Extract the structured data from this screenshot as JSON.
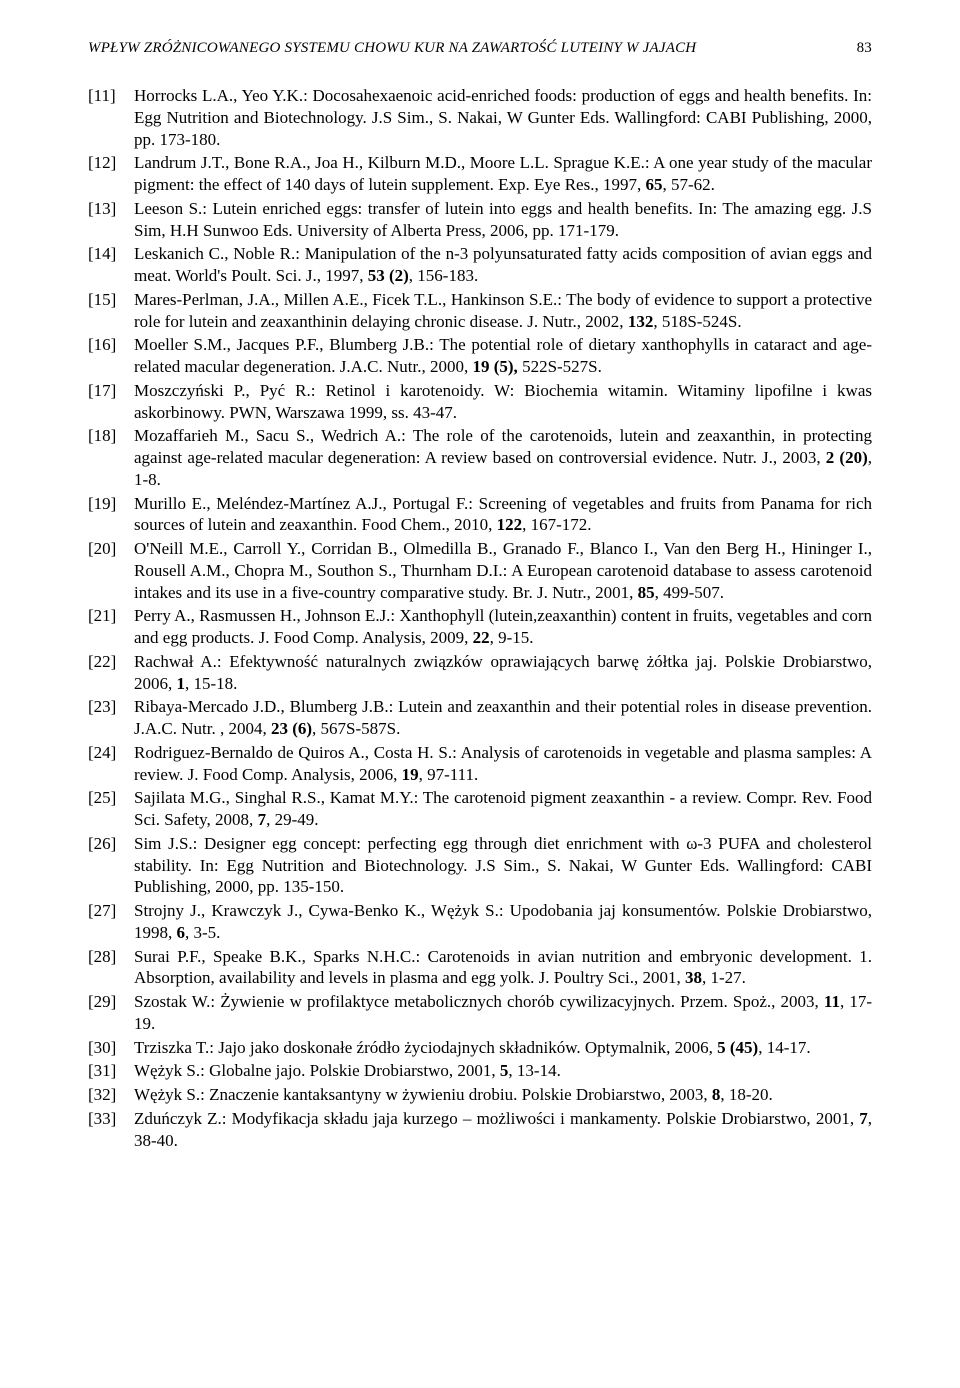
{
  "runningHead": {
    "title": "WPŁYW ZRÓŻNICOWANEGO SYSTEMU CHOWU KUR NA ZAWARTOŚĆ LUTEINY W JAJACH",
    "pageNumber": "83"
  },
  "references": [
    {
      "num": "[11]",
      "text": "Horrocks L.A., Yeo Y.K.: Docosahexaenoic acid-enriched foods: production of eggs and health benefits. In: Egg Nutrition and Biotechnology. J.S Sim., S. Nakai, W Gunter Eds. Wallingford: CABI Publishing, 2000, pp. 173-180."
    },
    {
      "num": "[12]",
      "text": "Landrum J.T., Bone R.A., Joa H., Kilburn M.D., Moore L.L. Sprague K.E.: A one year study of the macular pigment: the effect of 140 days of lutein supplement. Exp. Eye Res., 1997, <b>65</b>, 57-62."
    },
    {
      "num": "[13]",
      "text": "Leeson S.: Lutein enriched eggs: transfer of lutein into eggs and health benefits. In: The amazing egg. J.S Sim, H.H Sunwoo Eds. University of Alberta Press, 2006, pp. 171-179."
    },
    {
      "num": "[14]",
      "text": "Leskanich C., Noble R.: Manipulation of the n-3 polyunsaturated fatty acids composition of avian eggs and meat. World's Poult. Sci. J., 1997, <b>53 (2)</b>, 156-183."
    },
    {
      "num": "[15]",
      "text": "Mares-Perlman, J.A., Millen A.E., Ficek T.L., Hankinson S.E.: The body of evidence to support a protective role for lutein and zeaxanthinin delaying chronic disease. J. Nutr., 2002, <b>132</b>, 518S-524S."
    },
    {
      "num": "[16]",
      "text": "Moeller S.M., Jacques P.F., Blumberg J.B.: The potential role of dietary xanthophylls in cataract and age-related macular degeneration. J.A.C. Nutr., 2000, <b>19 (5),</b> 522S-527S."
    },
    {
      "num": "[17]",
      "text": "Moszczyński P., Pyć R.: Retinol i karotenoidy. W: Biochemia witamin. Witaminy lipofilne i kwas askorbinowy. PWN, Warszawa 1999, ss. 43-47."
    },
    {
      "num": "[18]",
      "text": "Mozaffarieh M., Sacu S., Wedrich A.: The role of the carotenoids, lutein and zeaxanthin, in protecting against age-related macular degeneration: A review based on controversial evidence. Nutr. J., 2003, <b>2 (20)</b>, 1-8."
    },
    {
      "num": "[19]",
      "text": "Murillo E., Meléndez-Martínez A.J., Portugal F.: Screening of vegetables and fruits from Panama for rich sources of lutein and zeaxanthin. Food Chem., 2010, <b>122</b>, 167-172."
    },
    {
      "num": "[20]",
      "text": "O'Neill M.E., Carroll Y., Corridan B., Olmedilla B., Granado F., Blanco I., Van den Berg H., Hininger I., Rousell A.M., Chopra M., Southon S., Thurnham D.I.: A European carotenoid database to assess carotenoid intakes and its use in a five-country comparative study. Br. J. Nutr., 2001, <b>85</b>, 499-507."
    },
    {
      "num": "[21]",
      "text": "Perry A., Rasmussen H., Johnson E.J.: Xanthophyll (lutein,zeaxanthin) content in fruits, vegetables and corn and egg products. J. Food Comp. Analysis, 2009, <b>22</b>, 9-15."
    },
    {
      "num": "[22]",
      "text": "Rachwał A.: Efektywność naturalnych związków oprawiających barwę żółtka jaj. Polskie Drobiarstwo, 2006, <b>1</b>, 15-18."
    },
    {
      "num": "[23]",
      "text": "Ribaya-Mercado J.D., Blumberg J.B.: Lutein and zeaxanthin and their potential roles in disease prevention. J.A.C. Nutr. , 2004, <b>23 (6)</b>, 567S-587S."
    },
    {
      "num": "[24]",
      "text": "Rodriguez-Bernaldo de Quiros A., Costa H. S.: Analysis of carotenoids in vegetable and plasma samples: A review. J. Food Comp. Analysis, 2006, <b>19</b>, 97-111."
    },
    {
      "num": "[25]",
      "text": "Sajilata M.G., Singhal R.S., Kamat M.Y.: The carotenoid pigment zeaxanthin - a review. Compr. Rev. Food Sci. Safety, 2008, <b>7</b>, 29-49."
    },
    {
      "num": "[26]",
      "text": "Sim J.S.: Designer egg concept: perfecting egg through diet enrichment with ω-3 PUFA and cholesterol stability. In: Egg Nutrition and Biotechnology. J.S Sim., S. Nakai, W Gunter Eds. Wallingford: CABI Publishing, 2000, pp. 135-150."
    },
    {
      "num": "[27]",
      "text": "Strojny J., Krawczyk J., Cywa-Benko K., Wężyk S.: Upodobania jaj konsumentów. Polskie Drobiarstwo, 1998, <b>6</b>, 3-5."
    },
    {
      "num": "[28]",
      "text": "Surai P.F., Speake B.K., Sparks N.H.C.: Carotenoids in avian nutrition and embryonic development. 1. Absorption, availability and levels in plasma and egg yolk. J. Poultry Sci., 2001, <b>38</b>, 1-27."
    },
    {
      "num": "[29]",
      "text": "Szostak W.: Żywienie w profilaktyce metabolicznych chorób cywilizacyjnych. Przem. Spoż., 2003, <b>11</b>, 17-19."
    },
    {
      "num": "[30]",
      "text": "Trziszka T.: Jajo jako doskonałe źródło życiodajnych składników. Optymalnik, 2006, <b>5 (45)</b>, 14-17."
    },
    {
      "num": "[31]",
      "text": "Wężyk S.: Globalne jajo. Polskie Drobiarstwo, 2001, <b>5</b>, 13-14."
    },
    {
      "num": "[32]",
      "text": "Wężyk S.: Znaczenie kantaksantyny w żywieniu drobiu. Polskie Drobiarstwo, 2003, <b>8</b>, 18-20."
    },
    {
      "num": "[33]",
      "text": "Zduńczyk Z.: Modyfikacja składu jaja kurzego – możliwości i mankamenty. Polskie Drobiarstwo, 2001, <b>7</b>, 38-40."
    }
  ]
}
